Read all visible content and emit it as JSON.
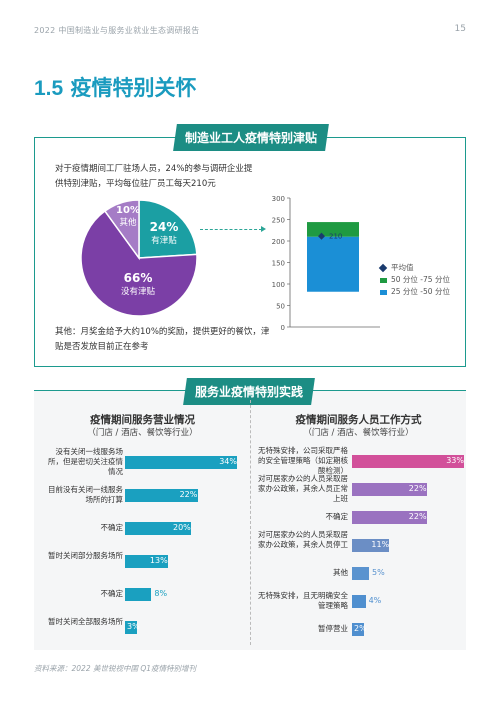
{
  "header": {
    "report_title": "2022 中国制造业与服务业就业生态调研报告",
    "page_number": "15"
  },
  "section_title": {
    "number": "1.5",
    "text": "疫情特别关怀"
  },
  "manufacturing": {
    "tab": "制造业工人疫情特别津贴",
    "intro": "对于疫情期间工厂驻场人员，24%的参与调研企业提供特别津贴，平均每位驻厂员工每天210元",
    "note": "其他：月奖金给予大约10%的奖励，提供更好的餐饮，津贴是否发放目前正在参考",
    "pie": [
      {
        "pct": "24%",
        "label": "有津贴",
        "value": 24,
        "color": "#1b9fa3"
      },
      {
        "pct": "66%",
        "label": "没有津贴",
        "value": 66,
        "color": "#7b3fa6"
      },
      {
        "pct": "10%",
        "label": "其他",
        "value": 10,
        "color": "#a57cc6"
      }
    ],
    "stack_chart": {
      "y_ticks": [
        "300",
        "250",
        "200",
        "150",
        "100",
        "50",
        "0"
      ],
      "ylim": [
        0,
        300
      ],
      "p25_50": [
        82,
        210
      ],
      "p50_75": [
        210,
        244
      ],
      "average": 210,
      "average_label": "210",
      "legend": {
        "average": "平均值",
        "p50_75": "50 分位 -75 分位",
        "p25_50": "25 分位 -50 分位"
      },
      "colors": {
        "p25_50": "#1b8fd6",
        "p50_75": "#1f9a42",
        "average": "#1a3b6e"
      }
    }
  },
  "service": {
    "tab": "服务业疫情特别实践",
    "left": {
      "title": "疫情期间服务营业情况",
      "subtitle": "（门店 / 酒店、餐饮等行业）",
      "color": "#1aa0c0",
      "rows": [
        {
          "label": "没有关闭一线服务场所，但是密切关注疫情情况",
          "value": 34,
          "text": "34%"
        },
        {
          "label": "目前没有关闭一线服务场所的打算",
          "value": 22,
          "text": "22%"
        },
        {
          "label": "不确定",
          "value": 20,
          "text": "20%"
        },
        {
          "label": "暂时关闭部分服务场所",
          "value": 13,
          "text": "13%"
        },
        {
          "label": "不确定",
          "value": 8,
          "text": "8%"
        },
        {
          "label": "暂时关闭全部服务场所",
          "value": 3,
          "text": "3%"
        }
      ]
    },
    "right": {
      "title": "疫情期间服务人员工作方式",
      "subtitle": "（门店 / 酒店、餐饮等行业）",
      "rows": [
        {
          "label": "无特殊安排，公司采取严格的安全管理策略（如定期核酸检测）",
          "value": 33,
          "text": "33%",
          "color": "#d2509a"
        },
        {
          "label": "对可居家办公的人员采取居家办公政策，其余人员正常上班",
          "value": 22,
          "text": "22%",
          "color": "#9a72c0"
        },
        {
          "label": "不确定",
          "value": 22,
          "text": "22%",
          "color": "#9a72c0"
        },
        {
          "label": "对可居家办公的人员采取居家办公政策，其余人员停工",
          "value": 11,
          "text": "11%",
          "color": "#6b8ec5"
        },
        {
          "label": "其他",
          "value": 5,
          "text": "5%",
          "color": "#5a93cf"
        },
        {
          "label": "无特殊安排，且无明确安全管理策略",
          "value": 4,
          "text": "4%",
          "color": "#4f8fcf"
        },
        {
          "label": "暂停营业",
          "value": 2,
          "text": "2%",
          "color": "#4f8fcf"
        }
      ]
    }
  },
  "source": "资料来源：2022 美世锐视中国 Q1疫情特别增刊"
}
